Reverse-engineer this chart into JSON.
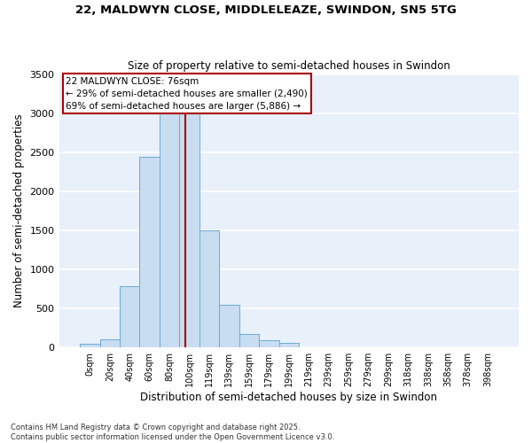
{
  "title1": "22, MALDWYN CLOSE, MIDDLELEAZE, SWINDON, SN5 5TG",
  "title2": "Size of property relative to semi-detached houses in Swindon",
  "xlabel": "Distribution of semi-detached houses by size in Swindon",
  "ylabel": "Number of semi-detached properties",
  "footnote": "Contains HM Land Registry data © Crown copyright and database right 2025.\nContains public sector information licensed under the Open Government Licence v3.0.",
  "bar_color": "#c9ddf0",
  "bar_edge_color": "#6aabd6",
  "background_color": "#e8f0fa",
  "grid_color": "#ffffff",
  "vline_color": "#aa0000",
  "annotation_box_color": "#aa0000",
  "categories": [
    "0sqm",
    "20sqm",
    "40sqm",
    "60sqm",
    "80sqm",
    "100sqm",
    "119sqm",
    "139sqm",
    "159sqm",
    "179sqm",
    "199sqm",
    "219sqm",
    "239sqm",
    "259sqm",
    "279sqm",
    "299sqm",
    "318sqm",
    "338sqm",
    "358sqm",
    "378sqm",
    "398sqm"
  ],
  "values": [
    50,
    100,
    780,
    2440,
    3200,
    3100,
    1500,
    550,
    175,
    90,
    60,
    0,
    0,
    0,
    0,
    0,
    0,
    0,
    0,
    0,
    0
  ],
  "vline_x": 4.8,
  "annotation_title": "22 MALDWYN CLOSE: 76sqm",
  "annotation_line1": "← 29% of semi-detached houses are smaller (2,490)",
  "annotation_line2": "69% of semi-detached houses are larger (5,886) →",
  "ylim": [
    0,
    3500
  ],
  "yticks": [
    0,
    500,
    1000,
    1500,
    2000,
    2500,
    3000,
    3500
  ]
}
